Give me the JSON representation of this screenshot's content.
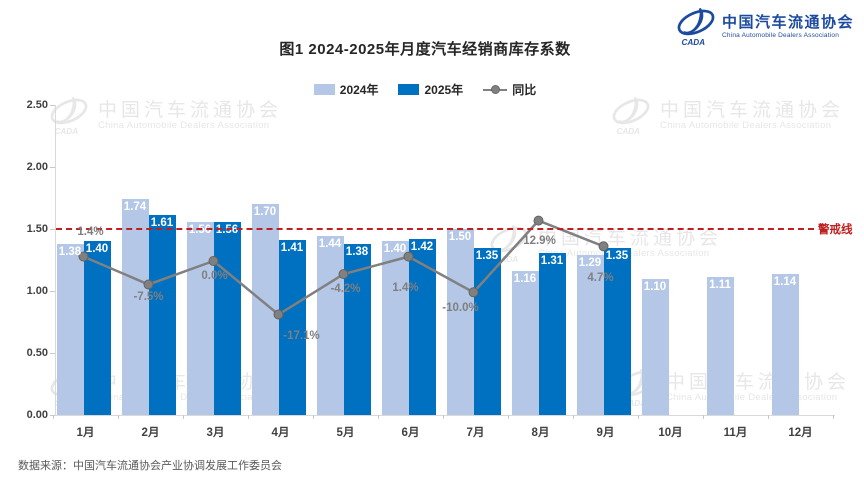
{
  "header": {
    "title": "图1  2024-2025年月度汽车经销商库存系数",
    "logo": {
      "abbr": "CADA",
      "org_cn": "中国汽车流通协会",
      "org_en": "China Automobile Dealers Association"
    }
  },
  "legend": [
    {
      "label": "2024年",
      "color": "#b4c7e7"
    },
    {
      "label": "2025年",
      "color": "#0070c0"
    },
    {
      "label": "同比",
      "color": "#808080"
    }
  ],
  "chart_data": {
    "type": "bar",
    "title": "图1  2024-2025年月度汽车经销商库存系数",
    "categories": [
      "1月",
      "2月",
      "3月",
      "4月",
      "5月",
      "6月",
      "7月",
      "8月",
      "9月",
      "10月",
      "11月",
      "12月"
    ],
    "series": [
      {
        "name": "2024年",
        "type": "bar",
        "color": "#b4c7e7",
        "values": [
          1.38,
          1.74,
          1.56,
          1.7,
          1.44,
          1.4,
          1.5,
          1.16,
          1.29,
          1.1,
          1.11,
          1.14
        ]
      },
      {
        "name": "2025年",
        "type": "bar",
        "color": "#0070c0",
        "values": [
          1.4,
          1.61,
          1.56,
          1.41,
          1.38,
          1.42,
          1.35,
          1.31,
          1.35,
          null,
          null,
          null
        ]
      },
      {
        "name": "同比",
        "type": "line",
        "color": "#808080",
        "unit": "%",
        "values": [
          1.4,
          -7.5,
          0.0,
          -17.1,
          -4.2,
          1.4,
          -10.0,
          12.9,
          4.7,
          null,
          null,
          null
        ]
      }
    ],
    "ylim": [
      0,
      2.5
    ],
    "yticks": [
      "0.00",
      "0.50",
      "1.00",
      "1.50",
      "2.00",
      "2.50"
    ],
    "grid": false,
    "legend_position": "top",
    "warning_line": {
      "value": 1.5,
      "label": "警戒线",
      "color": "#bf1f1f"
    }
  },
  "watermark": {
    "org_cn": "中国汽车流通协会",
    "org_en": "China Automobile Dealers Association"
  },
  "footer": {
    "source": "数据来源：中国汽车流通协会产业协调发展工作委员会"
  }
}
